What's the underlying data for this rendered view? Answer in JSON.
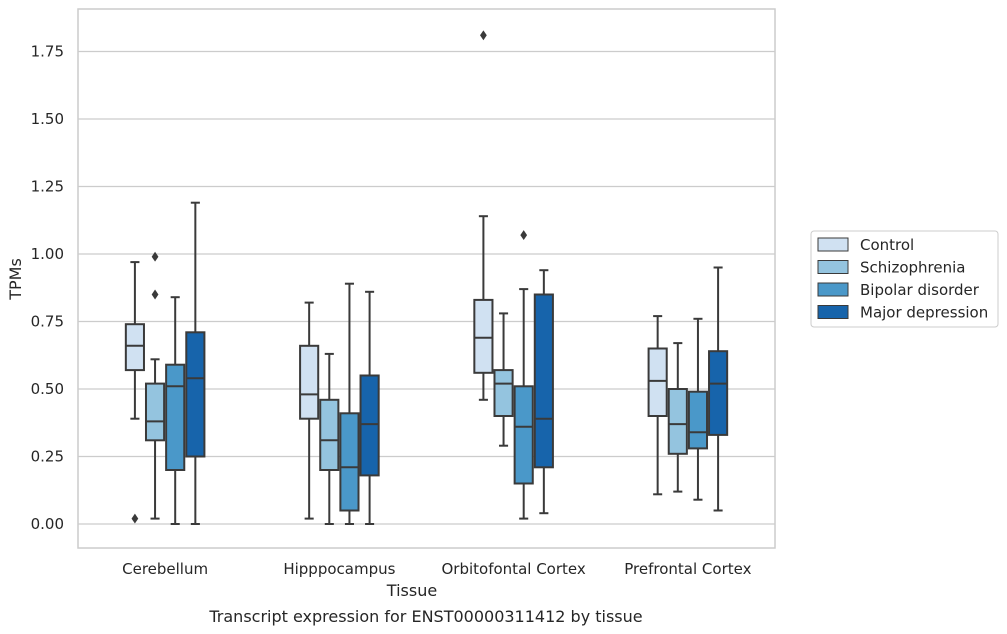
{
  "chart_data": {
    "type": "box",
    "title": "",
    "caption": "Transcript expression for ENST00000311412 by tissue",
    "xlabel": "Tissue",
    "ylabel": "TPMs",
    "ylim": [
      -0.09,
      1.9
    ],
    "yticks": [
      0.0,
      0.25,
      0.5,
      0.75,
      1.0,
      1.25,
      1.5,
      1.75
    ],
    "ytick_labels": [
      "0.00",
      "0.25",
      "0.50",
      "0.75",
      "1.00",
      "1.25",
      "1.50",
      "1.75"
    ],
    "grid": "horizontal",
    "legend_position": "right",
    "categories": [
      "Cerebellum",
      "Hipppocampus",
      "Orbitofontal Cortex",
      "Prefrontal Cortex"
    ],
    "series": [
      {
        "name": "Control",
        "color": "#d0e1f2",
        "boxes": [
          {
            "whislo": 0.39,
            "q1": 0.57,
            "med": 0.66,
            "q3": 0.74,
            "whishi": 0.97,
            "fliers": [
              0.02
            ]
          },
          {
            "whislo": 0.02,
            "q1": 0.39,
            "med": 0.48,
            "q3": 0.66,
            "whishi": 0.82,
            "fliers": []
          },
          {
            "whislo": 0.46,
            "q1": 0.56,
            "med": 0.69,
            "q3": 0.83,
            "whishi": 1.14,
            "fliers": [
              1.81
            ]
          },
          {
            "whislo": 0.11,
            "q1": 0.4,
            "med": 0.53,
            "q3": 0.65,
            "whishi": 0.77,
            "fliers": []
          }
        ]
      },
      {
        "name": "Schizophrenia",
        "color": "#94c4df",
        "boxes": [
          {
            "whislo": 0.02,
            "q1": 0.31,
            "med": 0.38,
            "q3": 0.52,
            "whishi": 0.61,
            "fliers": [
              0.85,
              0.99
            ]
          },
          {
            "whislo": 0.0,
            "q1": 0.2,
            "med": 0.31,
            "q3": 0.46,
            "whishi": 0.63,
            "fliers": []
          },
          {
            "whislo": 0.29,
            "q1": 0.4,
            "med": 0.52,
            "q3": 0.57,
            "whishi": 0.78,
            "fliers": []
          },
          {
            "whislo": 0.12,
            "q1": 0.26,
            "med": 0.37,
            "q3": 0.5,
            "whishi": 0.67,
            "fliers": []
          }
        ]
      },
      {
        "name": "Bipolar disorder",
        "color": "#4a98c9",
        "boxes": [
          {
            "whislo": 0.0,
            "q1": 0.2,
            "med": 0.51,
            "q3": 0.59,
            "whishi": 0.84,
            "fliers": []
          },
          {
            "whislo": 0.0,
            "q1": 0.05,
            "med": 0.21,
            "q3": 0.41,
            "whishi": 0.89,
            "fliers": []
          },
          {
            "whislo": 0.02,
            "q1": 0.15,
            "med": 0.36,
            "q3": 0.51,
            "whishi": 0.87,
            "fliers": [
              1.07
            ]
          },
          {
            "whislo": 0.09,
            "q1": 0.28,
            "med": 0.34,
            "q3": 0.49,
            "whishi": 0.76,
            "fliers": []
          }
        ]
      },
      {
        "name": "Major depression",
        "color": "#1764ab",
        "boxes": [
          {
            "whislo": 0.0,
            "q1": 0.25,
            "med": 0.54,
            "q3": 0.71,
            "whishi": 1.19,
            "fliers": []
          },
          {
            "whislo": 0.0,
            "q1": 0.18,
            "med": 0.37,
            "q3": 0.55,
            "whishi": 0.86,
            "fliers": []
          },
          {
            "whislo": 0.04,
            "q1": 0.21,
            "med": 0.39,
            "q3": 0.85,
            "whishi": 0.94,
            "fliers": []
          },
          {
            "whislo": 0.05,
            "q1": 0.33,
            "med": 0.52,
            "q3": 0.64,
            "whishi": 0.95,
            "fliers": []
          }
        ]
      }
    ]
  }
}
